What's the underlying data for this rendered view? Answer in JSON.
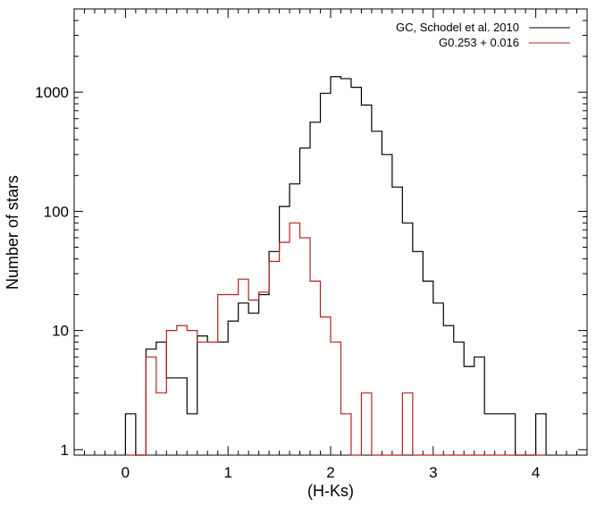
{
  "chart_data": {
    "type": "line",
    "style": "step-histogram",
    "xlabel": "(H-Ks)",
    "ylabel": "Number of stars",
    "xlim": [
      -0.5,
      4.5
    ],
    "ylim": [
      0.9,
      5000
    ],
    "yscale": "log",
    "xticks": [
      0,
      1,
      2,
      3,
      4
    ],
    "xtick_labels": [
      "0",
      "1",
      "2",
      "3",
      "4"
    ],
    "yticks": [
      1,
      10,
      100,
      1000
    ],
    "ytick_labels": [
      "1",
      "10",
      "100",
      "1000"
    ],
    "grid": false,
    "legend_position": "top-right",
    "bin_edges": [
      0.0,
      0.1,
      0.2,
      0.3,
      0.4,
      0.5,
      0.6,
      0.7,
      0.8,
      0.9,
      1.0,
      1.1,
      1.2,
      1.3,
      1.4,
      1.5,
      1.6,
      1.7,
      1.8,
      1.9,
      2.0,
      2.1,
      2.2,
      2.3,
      2.4,
      2.5,
      2.6,
      2.7,
      2.8,
      2.9,
      3.0,
      3.1,
      3.2,
      3.3,
      3.4,
      3.5,
      3.6,
      3.7,
      3.8,
      3.9,
      4.0,
      4.1
    ],
    "series": [
      {
        "name": "GC, Schodel et al. 2010",
        "color": "#000000",
        "values": [
          2,
          0,
          7,
          8,
          4,
          4,
          2,
          9,
          8,
          8,
          12,
          17,
          14,
          20,
          46,
          110,
          170,
          340,
          560,
          980,
          1350,
          1300,
          1100,
          780,
          470,
          300,
          160,
          80,
          46,
          26,
          17,
          11,
          8,
          5,
          6,
          2,
          2,
          2,
          0,
          0,
          2
        ]
      },
      {
        "name": "G0.253 + 0.016",
        "color": "#b22222",
        "values": [
          0,
          0,
          6,
          3,
          10,
          11,
          10,
          8,
          8,
          20,
          20,
          27,
          18,
          21,
          38,
          55,
          80,
          60,
          26,
          13,
          8,
          2,
          0,
          3,
          0,
          0,
          0,
          3,
          0,
          0,
          0,
          0,
          0,
          0,
          0,
          0,
          0,
          0,
          0,
          0,
          0
        ]
      }
    ],
    "legend_entries": [
      "GC, Schodel et al. 2010",
      "G0.253 + 0.016"
    ]
  }
}
